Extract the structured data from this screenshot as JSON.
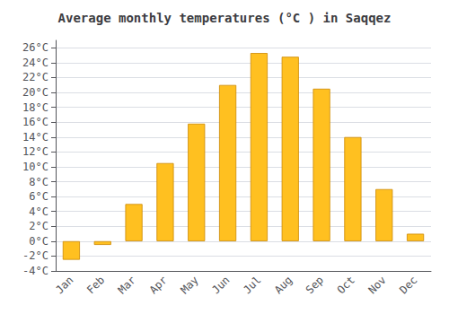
{
  "chart_data": {
    "type": "bar",
    "title": "Average monthly temperatures (°C ) in Saqqez",
    "categories": [
      "Jan",
      "Feb",
      "Mar",
      "Apr",
      "May",
      "Jun",
      "Jul",
      "Aug",
      "Sep",
      "Oct",
      "Nov",
      "Dec"
    ],
    "values": [
      -2.5,
      -0.5,
      5.0,
      10.5,
      15.8,
      21.0,
      25.3,
      24.8,
      20.5,
      14.0,
      7.0,
      1.0
    ],
    "color": "#FFC020",
    "ylim": [
      -4,
      27
    ],
    "yticks": [
      {
        "value": -4,
        "label": "-4°C"
      },
      {
        "value": -2,
        "label": "-2°C"
      },
      {
        "value": 0,
        "label": "0°C"
      },
      {
        "value": 2,
        "label": "2°C"
      },
      {
        "value": 4,
        "label": "4°C"
      },
      {
        "value": 6,
        "label": "6°C"
      },
      {
        "value": 8,
        "label": "8°C"
      },
      {
        "value": 10,
        "label": "10°C"
      },
      {
        "value": 12,
        "label": "12°C"
      },
      {
        "value": 14,
        "label": "14°C"
      },
      {
        "value": 16,
        "label": "16°C"
      },
      {
        "value": 18,
        "label": "18°C"
      },
      {
        "value": 20,
        "label": "20°C"
      },
      {
        "value": 22,
        "label": "22°C"
      },
      {
        "value": 24,
        "label": "24°C"
      },
      {
        "value": 26,
        "label": "26°C"
      }
    ],
    "grid": true
  }
}
